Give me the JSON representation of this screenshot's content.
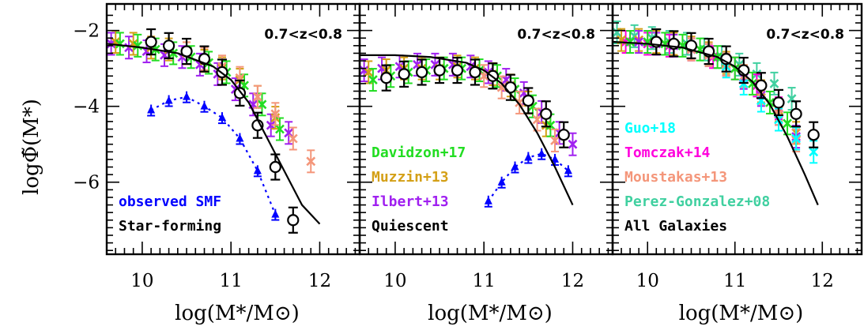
{
  "figure": {
    "ylabel": "logΦ̃(M*)",
    "xlabel": "log(M*/M⊙)"
  },
  "chart_data": {
    "type": "scatter",
    "xlim": [
      9.6,
      12.45
    ],
    "ylim": [
      -7.9,
      -1.3
    ],
    "xticks": [
      10,
      11,
      12
    ],
    "yticks": [
      -2,
      -4,
      -6
    ],
    "panels": [
      {
        "title": "0.7<z<0.8",
        "label": "Star-forming",
        "legend": [
          "observed SMF",
          "Star-forming"
        ],
        "series": [
          {
            "name": "Ilbert+13",
            "color": "#a020f0",
            "marker": "x",
            "x": [
              9.65,
              9.85,
              10.05,
              10.25,
              10.45,
              10.65,
              10.85,
              11.05,
              11.25,
              11.45,
              11.65
            ],
            "y": [
              -2.35,
              -2.45,
              -2.55,
              -2.65,
              -2.7,
              -2.9,
              -3.15,
              -3.55,
              -3.95,
              -4.5,
              -4.7
            ]
          },
          {
            "name": "Muzzin+13",
            "color": "#d4a017",
            "marker": "x",
            "x": [
              9.7,
              9.9,
              10.1,
              10.3,
              10.5,
              10.7,
              10.9,
              11.1,
              11.3,
              11.5
            ],
            "y": [
              -2.3,
              -2.35,
              -2.45,
              -2.5,
              -2.6,
              -2.8,
              -3.0,
              -3.3,
              -3.75,
              -4.3
            ]
          },
          {
            "name": "Davidzon+17",
            "color": "#22dd22",
            "marker": "x",
            "x": [
              9.75,
              9.95,
              10.15,
              10.35,
              10.55,
              10.75,
              10.95,
              11.15,
              11.35,
              11.55
            ],
            "y": [
              -2.35,
              -2.4,
              -2.5,
              -2.6,
              -2.7,
              -2.85,
              -3.1,
              -3.45,
              -3.95,
              -4.6
            ]
          },
          {
            "name": "Moustakas+13",
            "color": "#f4967a",
            "marker": "x",
            "x": [
              10.5,
              10.7,
              10.9,
              11.1,
              11.3,
              11.5,
              11.7,
              11.9
            ],
            "y": [
              -2.6,
              -2.75,
              -2.95,
              -3.25,
              -3.75,
              -4.2,
              -4.85,
              -5.45
            ]
          },
          {
            "name": "observed SMF",
            "color": "#0000ff",
            "marker": "triangle",
            "line": "dotted",
            "x": [
              10.1,
              10.3,
              10.5,
              10.7,
              10.9,
              11.1,
              11.3,
              11.5
            ],
            "y": [
              -4.1,
              -3.85,
              -3.75,
              -4.0,
              -4.3,
              -4.85,
              -5.7,
              -6.85
            ]
          },
          {
            "name": "Star-forming",
            "color": "#000000",
            "marker": "circle",
            "x": [
              10.1,
              10.3,
              10.5,
              10.7,
              10.9,
              11.1,
              11.3,
              11.5,
              11.7
            ],
            "y": [
              -2.3,
              -2.4,
              -2.55,
              -2.75,
              -3.1,
              -3.65,
              -4.5,
              -5.6,
              -7.0
            ]
          },
          {
            "name": "Star-forming model",
            "color": "#000000",
            "marker": "none",
            "line": "solid",
            "x": [
              9.6,
              10.0,
              10.4,
              10.8,
              11.0,
              11.2,
              11.4,
              11.6,
              11.8,
              12.0
            ],
            "y": [
              -2.35,
              -2.45,
              -2.6,
              -2.95,
              -3.3,
              -3.9,
              -4.8,
              -5.7,
              -6.6,
              -7.1
            ]
          }
        ]
      },
      {
        "title": "0.7<z<0.8",
        "label": "Quiescent",
        "legend": [
          "Davidzon+17",
          "Muzzin+13",
          "Ilbert+13",
          "Quiescent"
        ],
        "series": [
          {
            "name": "Ilbert+13",
            "color": "#a020f0",
            "marker": "x",
            "x": [
              9.65,
              9.85,
              10.05,
              10.25,
              10.45,
              10.65,
              10.85,
              11.05,
              11.25,
              11.45,
              11.65,
              11.85,
              12.0
            ],
            "y": [
              -3.05,
              -3.0,
              -2.95,
              -2.9,
              -2.9,
              -2.9,
              -2.95,
              -3.1,
              -3.3,
              -3.65,
              -4.15,
              -4.7,
              -5.0
            ]
          },
          {
            "name": "Muzzin+13",
            "color": "#d4a017",
            "marker": "x",
            "x": [
              9.7,
              9.9,
              10.1,
              10.3,
              10.5,
              10.7,
              10.9,
              11.1,
              11.3,
              11.5,
              11.7
            ],
            "y": [
              -3.1,
              -3.05,
              -3.0,
              -3.0,
              -3.0,
              -2.95,
              -3.0,
              -3.15,
              -3.45,
              -3.9,
              -4.5
            ]
          },
          {
            "name": "Davidzon+17",
            "color": "#22dd22",
            "marker": "x",
            "x": [
              9.75,
              9.95,
              10.15,
              10.35,
              10.55,
              10.75,
              10.95,
              11.15,
              11.35,
              11.55,
              11.75
            ],
            "y": [
              -3.3,
              -3.2,
              -3.1,
              -3.05,
              -3.0,
              -3.0,
              -3.05,
              -3.2,
              -3.55,
              -4.0,
              -4.5
            ]
          },
          {
            "name": "Moustakas+13",
            "color": "#f4967a",
            "marker": "x",
            "x": [
              11.0,
              11.2,
              11.4,
              11.6,
              11.8
            ],
            "y": [
              -3.2,
              -3.5,
              -3.9,
              -4.35,
              -4.9
            ]
          },
          {
            "name": "observed SMF",
            "color": "#0000ff",
            "marker": "triangle",
            "line": "dotted",
            "x": [
              11.05,
              11.2,
              11.35,
              11.5,
              11.65,
              11.8,
              11.95
            ],
            "y": [
              -6.5,
              -6.0,
              -5.6,
              -5.35,
              -5.25,
              -5.4,
              -5.7
            ]
          },
          {
            "name": "Quiescent",
            "color": "#000000",
            "marker": "circle",
            "x": [
              9.9,
              10.1,
              10.3,
              10.5,
              10.7,
              10.9,
              11.1,
              11.3,
              11.5,
              11.7,
              11.9
            ],
            "y": [
              -3.25,
              -3.15,
              -3.1,
              -3.05,
              -3.05,
              -3.1,
              -3.2,
              -3.5,
              -3.85,
              -4.2,
              -4.75
            ]
          },
          {
            "name": "Quiescent model",
            "color": "#000000",
            "marker": "none",
            "line": "solid",
            "x": [
              9.6,
              10.0,
              10.4,
              10.8,
              11.0,
              11.2,
              11.4,
              11.6,
              11.8,
              12.0
            ],
            "y": [
              -2.65,
              -2.65,
              -2.7,
              -2.85,
              -3.05,
              -3.4,
              -3.95,
              -4.7,
              -5.6,
              -6.6
            ]
          }
        ]
      },
      {
        "title": "0.7<z<0.8",
        "label": "All Galaxies",
        "legend": [
          "Guo+18",
          "Tomczak+14",
          "Moustakas+13",
          "Perez-Gonzalez+08",
          "All Galaxies"
        ],
        "series": [
          {
            "name": "Perez-Gonzalez+08",
            "color": "#40d0a0",
            "marker": "x",
            "x": [
              9.65,
              9.85,
              10.05,
              10.25,
              10.45,
              10.65,
              10.85,
              11.05,
              11.25,
              11.45,
              11.65
            ],
            "y": [
              -2.05,
              -2.15,
              -2.2,
              -2.3,
              -2.35,
              -2.5,
              -2.7,
              -2.9,
              -3.15,
              -3.4,
              -3.8
            ]
          },
          {
            "name": "Tomczak+14",
            "color": "#ff00dd",
            "marker": "x",
            "x": [
              9.75,
              10.0,
              10.25,
              10.5,
              10.75,
              11.0,
              11.25,
              11.5
            ],
            "y": [
              -2.3,
              -2.35,
              -2.4,
              -2.5,
              -2.7,
              -3.0,
              -3.45,
              -4.05
            ]
          },
          {
            "name": "Muzzin+13",
            "color": "#d4a017",
            "marker": "x",
            "x": [
              9.7,
              9.9,
              10.1,
              10.3,
              10.5,
              10.7,
              10.9,
              11.1,
              11.3,
              11.5,
              11.7
            ],
            "y": [
              -2.25,
              -2.25,
              -2.3,
              -2.35,
              -2.45,
              -2.6,
              -2.85,
              -3.2,
              -3.6,
              -4.1,
              -4.7
            ]
          },
          {
            "name": "Davidzon+17",
            "color": "#22dd22",
            "marker": "x",
            "x": [
              9.8,
              10.0,
              10.2,
              10.4,
              10.6,
              10.8,
              11.0,
              11.2,
              11.4,
              11.6
            ],
            "y": [
              -2.3,
              -2.3,
              -2.35,
              -2.4,
              -2.5,
              -2.7,
              -3.0,
              -3.4,
              -3.9,
              -4.45
            ]
          },
          {
            "name": "Ilbert+13",
            "color": "#a020f0",
            "marker": "x",
            "x": [
              9.9,
              10.1,
              10.3,
              10.5,
              10.7,
              10.9,
              11.1,
              11.3,
              11.5,
              11.7
            ],
            "y": [
              -2.3,
              -2.35,
              -2.4,
              -2.5,
              -2.65,
              -2.9,
              -3.25,
              -3.7,
              -4.2,
              -4.8
            ]
          },
          {
            "name": "Moustakas+13",
            "color": "#f4967a",
            "marker": "x",
            "x": [
              10.5,
              10.7,
              10.9,
              11.1,
              11.3,
              11.5,
              11.7
            ],
            "y": [
              -2.5,
              -2.65,
              -2.9,
              -3.2,
              -3.65,
              -4.2,
              -4.9
            ]
          },
          {
            "name": "Guo+18",
            "color": "#00ffff",
            "marker": "x",
            "x": [
              10.9,
              11.1,
              11.3,
              11.5,
              11.7,
              11.9
            ],
            "y": [
              -2.95,
              -3.4,
              -3.85,
              -4.35,
              -4.85,
              -5.2
            ]
          },
          {
            "name": "All Galaxies",
            "color": "#000000",
            "marker": "circle",
            "x": [
              10.1,
              10.3,
              10.5,
              10.7,
              10.9,
              11.1,
              11.3,
              11.5,
              11.7,
              11.9
            ],
            "y": [
              -2.3,
              -2.35,
              -2.4,
              -2.55,
              -2.75,
              -3.05,
              -3.45,
              -3.9,
              -4.2,
              -4.75
            ]
          },
          {
            "name": "All Galaxies model",
            "color": "#000000",
            "marker": "none",
            "line": "solid",
            "x": [
              9.6,
              10.0,
              10.4,
              10.8,
              11.0,
              11.2,
              11.4,
              11.6,
              11.8,
              11.95
            ],
            "y": [
              -2.3,
              -2.35,
              -2.45,
              -2.7,
              -2.95,
              -3.35,
              -3.95,
              -4.8,
              -5.8,
              -6.6
            ]
          }
        ]
      }
    ]
  }
}
